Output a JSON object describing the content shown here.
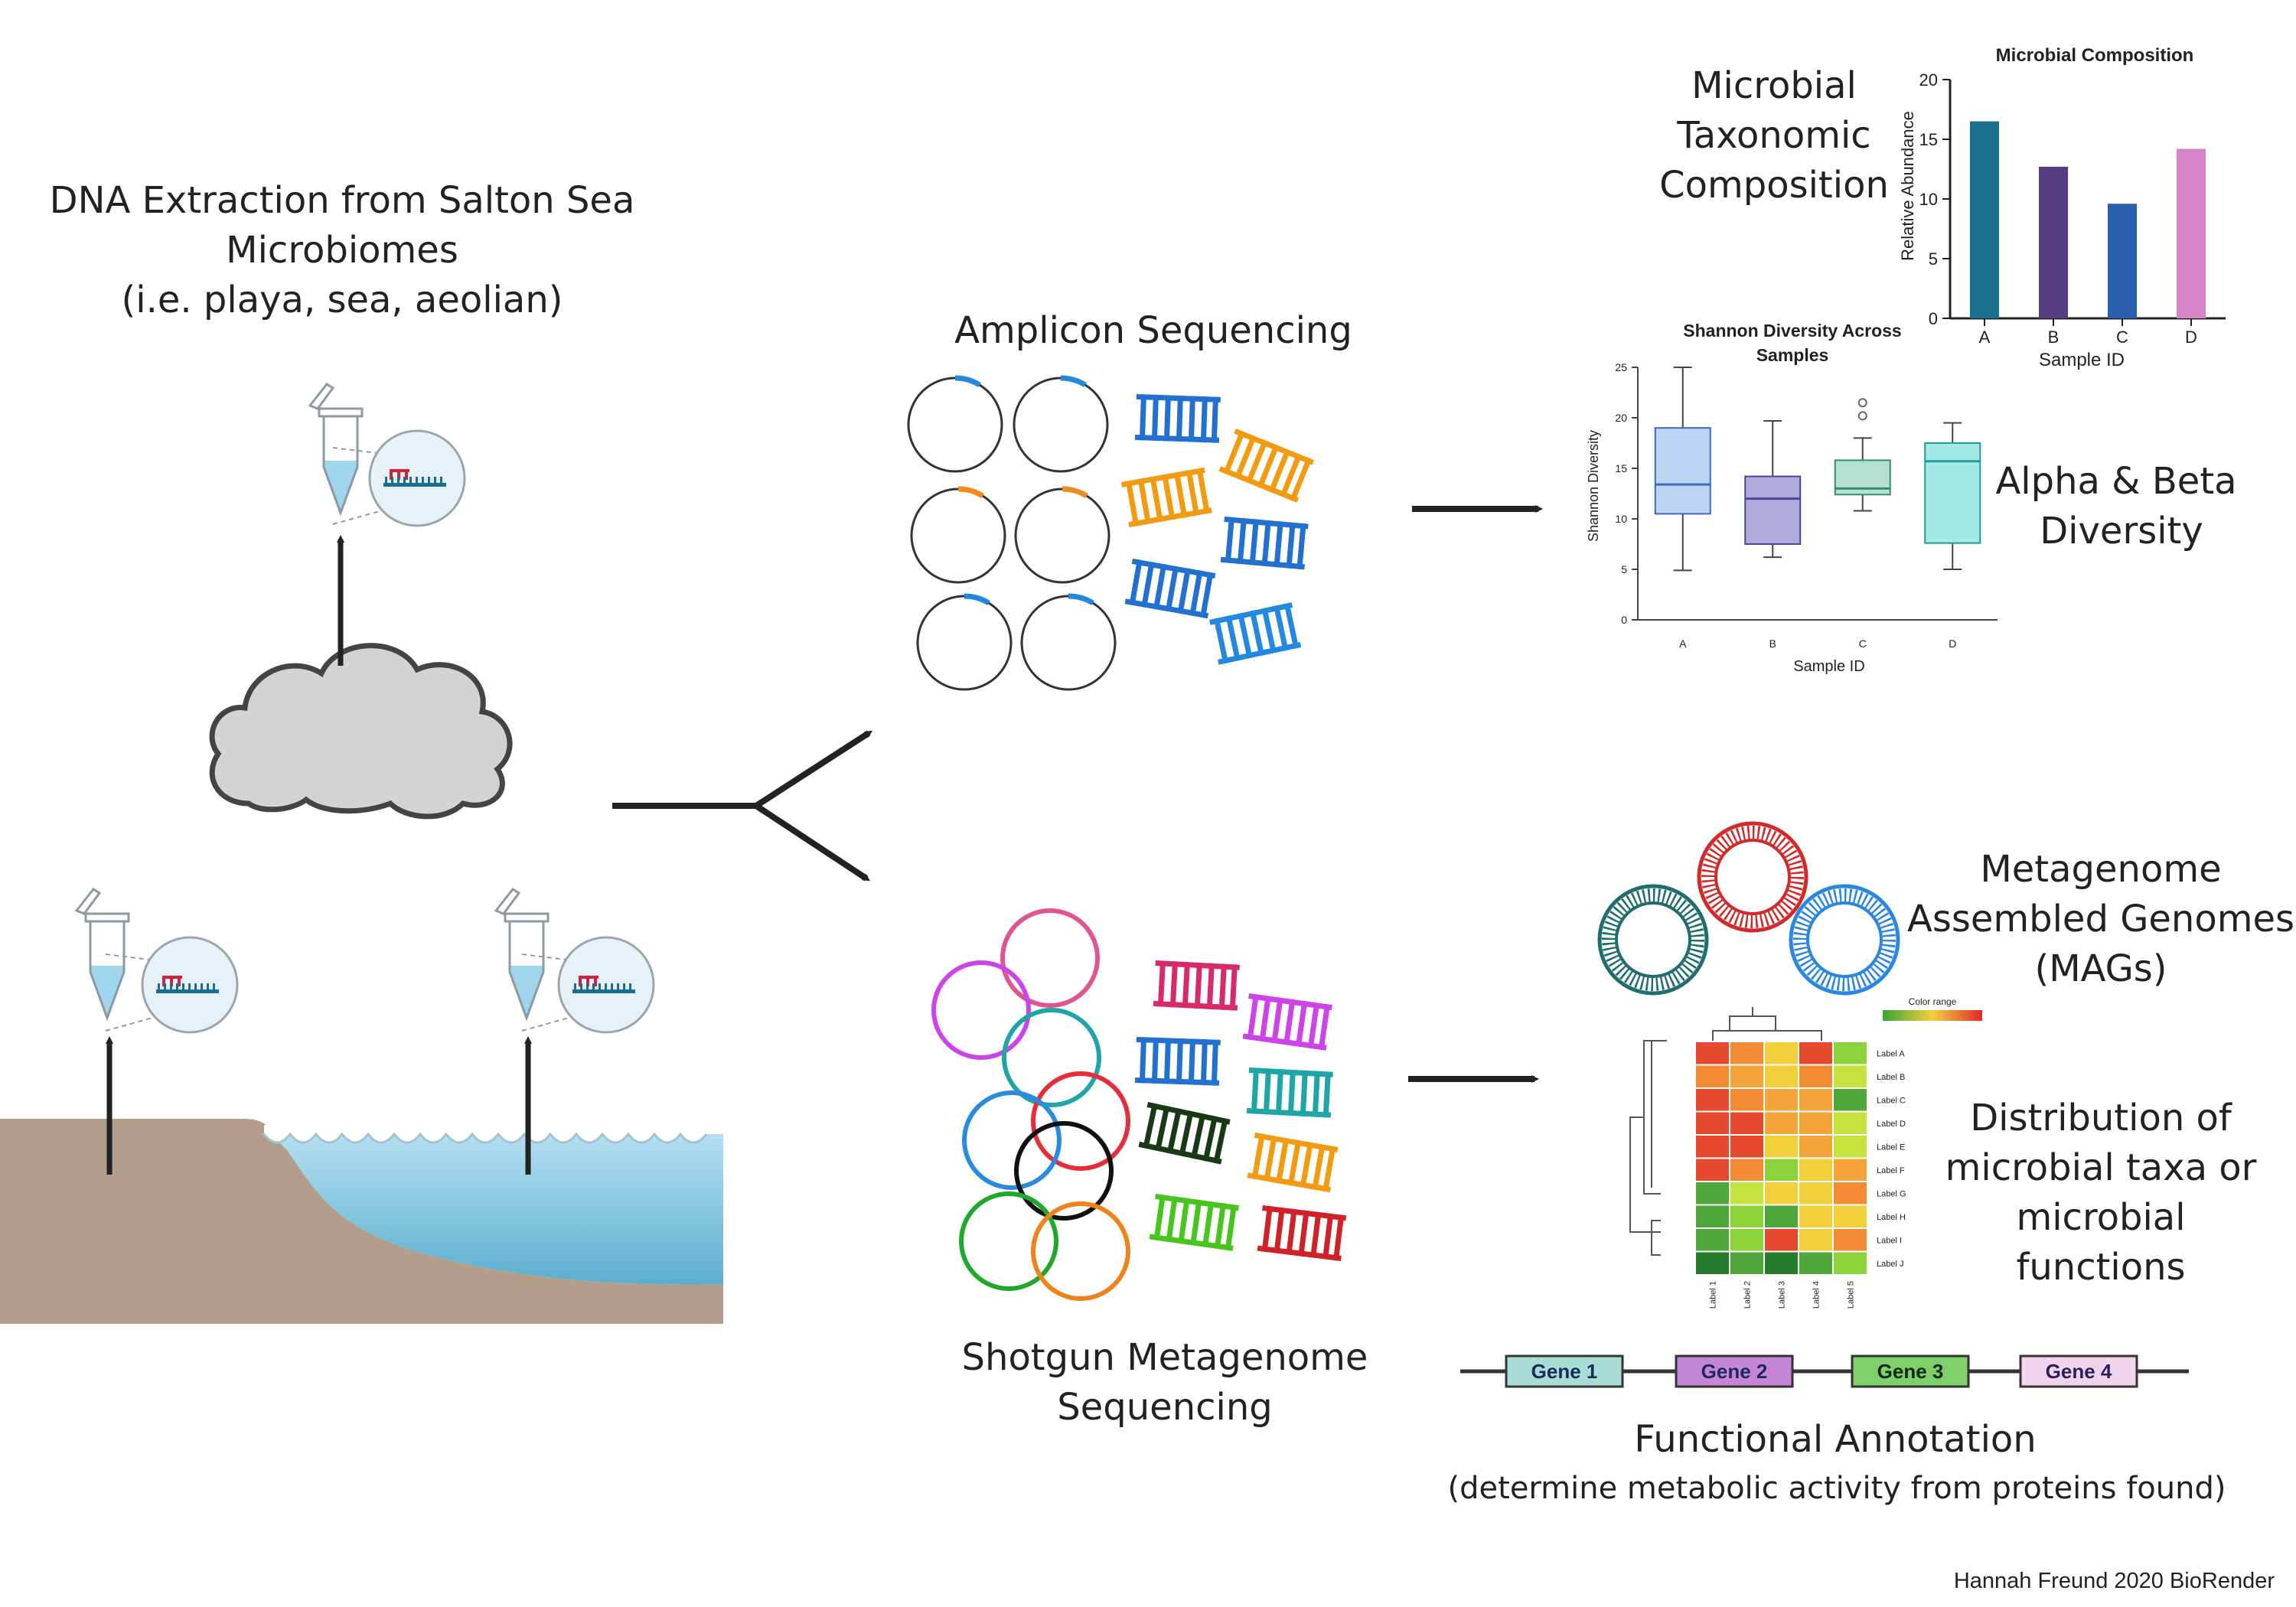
{
  "labels": {
    "extraction": [
      "DNA Extraction from Salton Sea",
      "Microbiomes",
      "(i.e. playa, sea, aeolian)"
    ],
    "amplicon": "Amplicon Sequencing",
    "shotgun": [
      "Shotgun Metagenome",
      "Sequencing"
    ],
    "taxonomic": [
      "Microbial",
      "Taxonomic",
      "Composition"
    ],
    "diversity": [
      "Alpha & Beta",
      "Diversity"
    ],
    "mags": [
      "Metagenome",
      "Assembled Genomes",
      "(MAGs)"
    ],
    "distribution": [
      "Distribution of",
      "microbial taxa or",
      "microbial",
      "functions"
    ],
    "functional": "Functional Annotation",
    "functional_sub": "(determine metabolic activity from proteins found)",
    "credit": "Hannah Freund 2020 BioRender"
  },
  "bar_chart": {
    "type": "bar",
    "title": "Microbial Composition",
    "xlabel": "Sample ID",
    "ylabel": "Relative Abundance",
    "categories": [
      "A",
      "B",
      "C",
      "D"
    ],
    "values": [
      16.5,
      12.7,
      9.6,
      14.2
    ],
    "colors": [
      "#1b6f8e",
      "#543b82",
      "#2a5fad",
      "#d484c8"
    ],
    "ylim": [
      0,
      20
    ],
    "yticks": [
      "0",
      "5",
      "10",
      "15",
      "20"
    ]
  },
  "box_chart": {
    "type": "box",
    "title": [
      "Shannon Diversity Across",
      "Samples"
    ],
    "xlabel": "Sample ID",
    "ylabel": "Shannon Diversity",
    "categories": [
      "A",
      "B",
      "C",
      "D"
    ],
    "ylim": [
      0,
      25
    ],
    "yticks": [
      "0",
      "5",
      "10",
      "15",
      "20",
      "25"
    ],
    "boxes": [
      {
        "min": 4.9,
        "q1": 10.5,
        "median": 13.4,
        "q3": 19.0,
        "max": 25.0,
        "fill": "#bcd3f2",
        "stroke": "#3c68c1"
      },
      {
        "min": 6.2,
        "q1": 7.5,
        "median": 12.0,
        "q3": 14.2,
        "max": 19.7,
        "fill": "#aeaadc",
        "stroke": "#4a4796"
      },
      {
        "min": 10.8,
        "q1": 12.4,
        "median": 13.0,
        "q3": 15.8,
        "max": 18.0,
        "outliers": [
          20.2,
          21.5
        ],
        "fill": "#b6e0d0",
        "stroke": "#3a8b6f"
      },
      {
        "min": 5.0,
        "q1": 7.6,
        "median": 15.7,
        "q3": 17.5,
        "max": 19.5,
        "fill": "#a3e9e7",
        "stroke": "#1f9d97"
      }
    ]
  },
  "heatmap": {
    "legend": "Color range",
    "rows": [
      "Label A",
      "Label B",
      "Label C",
      "Label D",
      "Label E",
      "Label F",
      "Label G",
      "Label H",
      "Label I",
      "Label J"
    ],
    "cols": [
      "Label 1",
      "Label 2",
      "Label 3",
      "Label 4",
      "Label 5"
    ],
    "colors": [
      [
        "#e64a2e",
        "#f38b34",
        "#f2d03b",
        "#e64a2e",
        "#8cd33b"
      ],
      [
        "#f38b34",
        "#f5a43a",
        "#f2d03b",
        "#f38b34",
        "#c6e23d"
      ],
      [
        "#e64a2e",
        "#f38b34",
        "#f5a43a",
        "#f5a43a",
        "#4fa63a"
      ],
      [
        "#e64a2e",
        "#e64a2e",
        "#f5a43a",
        "#f5a43a",
        "#c6e23d"
      ],
      [
        "#e64a2e",
        "#e64a2e",
        "#f2d03b",
        "#f5a43a",
        "#c6e23d"
      ],
      [
        "#e64a2e",
        "#f38b34",
        "#8cd33b",
        "#f2d03b",
        "#f5a43a"
      ],
      [
        "#4fa63a",
        "#c6e23d",
        "#f2d03b",
        "#f2d03b",
        "#f38b34"
      ],
      [
        "#4fa63a",
        "#8cd33b",
        "#4fa63a",
        "#f2d03b",
        "#f2d03b"
      ],
      [
        "#4fa63a",
        "#8cd33b",
        "#e64a2e",
        "#f2d03b",
        "#f38b34"
      ],
      [
        "#237b2b",
        "#4fa63a",
        "#237b2b",
        "#4fa63a",
        "#8cd33b"
      ]
    ]
  },
  "genes": [
    {
      "label": "Gene 1",
      "fill": "#a8ddd6",
      "text": "#1b2a5a"
    },
    {
      "label": "Gene 2",
      "fill": "#c785d9",
      "text": "#1b2a5a"
    },
    {
      "label": "Gene 3",
      "fill": "#7fcf6b",
      "text": "#102a10"
    },
    {
      "label": "Gene 4",
      "fill": "#f1d4ec",
      "text": "#2a2060"
    }
  ],
  "icons": [
    "microcentrifuge-tube-icon",
    "dna-strand-icon",
    "cloud-icon",
    "plasmid-icon",
    "dna-ladder-icon",
    "genome-ring-icon",
    "dendrogram-icon"
  ]
}
